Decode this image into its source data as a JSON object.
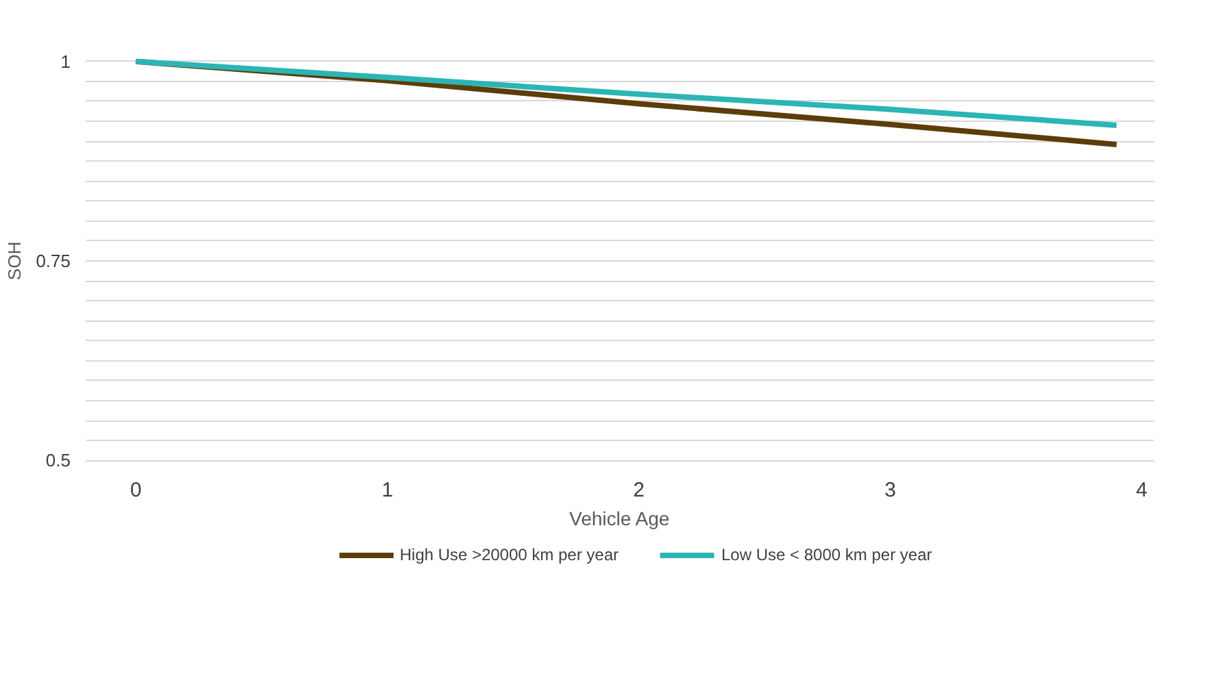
{
  "chart_data": {
    "type": "line",
    "xlabel": "Vehicle Age",
    "ylabel": "SOH",
    "x": [
      0,
      1,
      2,
      3,
      3.9
    ],
    "series": [
      {
        "name": "High Use >20000 km per year",
        "color": "#5c3d0a",
        "values": [
          1,
          0.976,
          0.947,
          0.921,
          0.896
        ]
      },
      {
        "name": "Low Use < 8000 km per year",
        "color": "#2bb5b5",
        "values": [
          1,
          0.98,
          0.959,
          0.94,
          0.92
        ]
      }
    ],
    "xlim": [
      -0.2,
      4.05
    ],
    "xticks": [
      0,
      1,
      2,
      3,
      4
    ],
    "ylim": [
      0.5,
      1
    ],
    "yticks": [
      0.5,
      {
        "value": 0.525,
        "label": null
      },
      {
        "value": 0.55,
        "label": null
      },
      {
        "value": 0.575,
        "label": null
      },
      {
        "value": 0.6,
        "label": null
      },
      {
        "value": 0.625,
        "label": null
      },
      {
        "value": 0.65,
        "label": null
      },
      {
        "value": 0.675,
        "label": null
      },
      {
        "value": 0.7,
        "label": null
      },
      {
        "value": 0.725,
        "label": null
      },
      0.75,
      {
        "value": 0.775,
        "label": null
      },
      {
        "value": 0.8,
        "label": null
      },
      {
        "value": 0.825,
        "label": null
      },
      {
        "value": 0.85,
        "label": null
      },
      {
        "value": 0.875,
        "label": null
      },
      {
        "value": 0.9,
        "label": null
      },
      {
        "value": 0.925,
        "label": null
      },
      {
        "value": 0.95,
        "label": null
      },
      {
        "value": 0.975,
        "label": null
      },
      1
    ],
    "grid": "y",
    "legend": "bottom",
    "line_style": "solid"
  }
}
